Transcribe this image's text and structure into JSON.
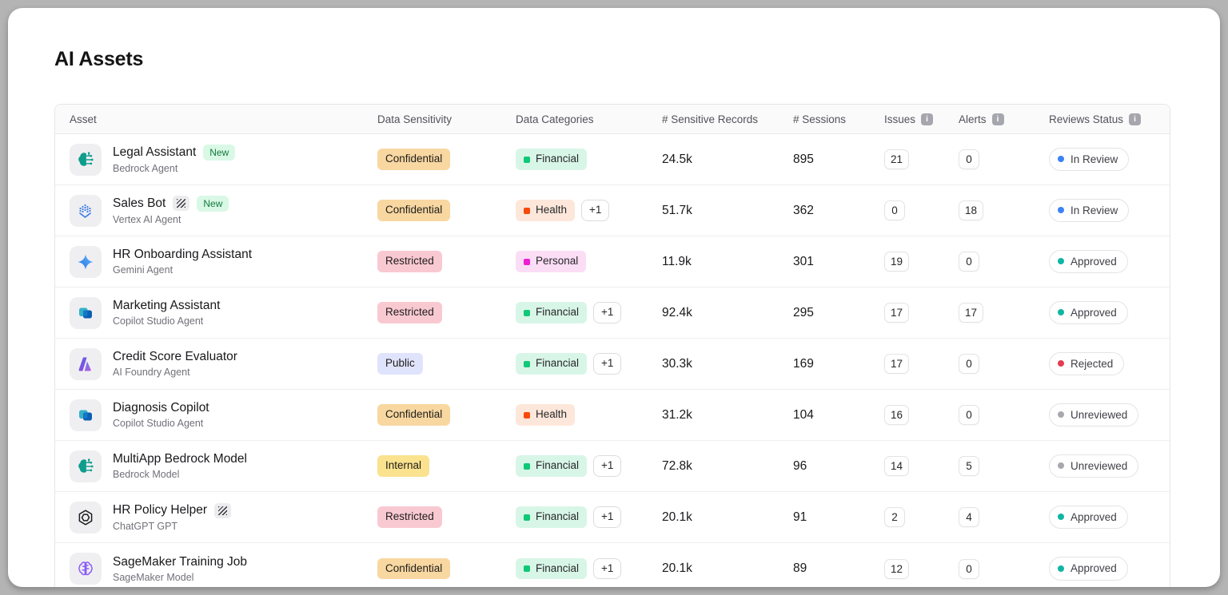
{
  "page": {
    "title": "AI Assets"
  },
  "colors": {
    "sensitivity": {
      "Confidential": {
        "bg": "#f8d7a1",
        "text": "#1f1d1a"
      },
      "Restricted": {
        "bg": "#f9c9d2",
        "text": "#1f1d1a"
      },
      "Public": {
        "bg": "#dfe3fc",
        "text": "#1f1d1a"
      },
      "Internal": {
        "bg": "#fae28e",
        "text": "#1f1d1a"
      }
    },
    "categories": {
      "Financial": {
        "bg": "#d8f6e7",
        "dot": "#10c877"
      },
      "Health": {
        "bg": "#fde7da",
        "dot": "#f64a0a"
      },
      "Personal": {
        "bg": "#fbddf6",
        "dot": "#ee1fd0"
      }
    },
    "review_status": {
      "In Review": "#3b82f6",
      "Approved": "#10b5a3",
      "Rejected": "#e23c52",
      "Unreviewed": "#a8a8b0"
    }
  },
  "table": {
    "columns": [
      {
        "label": "Asset",
        "info": false
      },
      {
        "label": "Data Sensitivity",
        "info": false
      },
      {
        "label": "Data Categories",
        "info": false
      },
      {
        "label": "# Sensitive Records",
        "info": false
      },
      {
        "label": "# Sessions",
        "info": false
      },
      {
        "label": "Issues",
        "info": true
      },
      {
        "label": "Alerts",
        "info": true
      },
      {
        "label": "Reviews Status",
        "info": true
      }
    ],
    "info_icon_glyph": "i",
    "new_badge_label": "New",
    "extra_chip_label": "+1",
    "rows": [
      {
        "name": "Legal Assistant",
        "subtitle": "Bedrock Agent",
        "icon": "bedrock",
        "is_new": true,
        "hatched": false,
        "sensitivity": "Confidential",
        "categories": [
          "Financial"
        ],
        "extra": false,
        "records": "24.5k",
        "sessions": "895",
        "issues": "21",
        "alerts": "0",
        "review": "In Review"
      },
      {
        "name": "Sales Bot",
        "subtitle": "Vertex AI Agent",
        "icon": "vertex",
        "is_new": true,
        "hatched": true,
        "sensitivity": "Confidential",
        "categories": [
          "Health"
        ],
        "extra": true,
        "records": "51.7k",
        "sessions": "362",
        "issues": "0",
        "alerts": "18",
        "review": "In Review"
      },
      {
        "name": "HR Onboarding Assistant",
        "subtitle": "Gemini Agent",
        "icon": "gemini",
        "is_new": false,
        "hatched": false,
        "sensitivity": "Restricted",
        "categories": [
          "Personal"
        ],
        "extra": false,
        "records": "11.9k",
        "sessions": "301",
        "issues": "19",
        "alerts": "0",
        "review": "Approved"
      },
      {
        "name": "Marketing Assistant",
        "subtitle": "Copilot Studio Agent",
        "icon": "copilot",
        "is_new": false,
        "hatched": false,
        "sensitivity": "Restricted",
        "categories": [
          "Financial"
        ],
        "extra": true,
        "records": "92.4k",
        "sessions": "295",
        "issues": "17",
        "alerts": "17",
        "review": "Approved"
      },
      {
        "name": "Credit Score Evaluator",
        "subtitle": "AI Foundry Agent",
        "icon": "foundry",
        "is_new": false,
        "hatched": false,
        "sensitivity": "Public",
        "categories": [
          "Financial"
        ],
        "extra": true,
        "records": "30.3k",
        "sessions": "169",
        "issues": "17",
        "alerts": "0",
        "review": "Rejected"
      },
      {
        "name": "Diagnosis Copilot",
        "subtitle": "Copilot Studio Agent",
        "icon": "copilot",
        "is_new": false,
        "hatched": false,
        "sensitivity": "Confidential",
        "categories": [
          "Health"
        ],
        "extra": false,
        "records": "31.2k",
        "sessions": "104",
        "issues": "16",
        "alerts": "0",
        "review": "Unreviewed"
      },
      {
        "name": "MultiApp Bedrock Model",
        "subtitle": "Bedrock Model",
        "icon": "bedrock",
        "is_new": false,
        "hatched": false,
        "sensitivity": "Internal",
        "categories": [
          "Financial"
        ],
        "extra": true,
        "records": "72.8k",
        "sessions": "96",
        "issues": "14",
        "alerts": "5",
        "review": "Unreviewed"
      },
      {
        "name": "HR Policy Helper",
        "subtitle": "ChatGPT GPT",
        "icon": "openai",
        "is_new": false,
        "hatched": true,
        "sensitivity": "Restricted",
        "categories": [
          "Financial"
        ],
        "extra": true,
        "records": "20.1k",
        "sessions": "91",
        "issues": "2",
        "alerts": "4",
        "review": "Approved"
      },
      {
        "name": "SageMaker Training Job",
        "subtitle": "SageMaker Model",
        "icon": "sagemaker",
        "is_new": false,
        "hatched": false,
        "sensitivity": "Confidential",
        "categories": [
          "Financial"
        ],
        "extra": true,
        "records": "20.1k",
        "sessions": "89",
        "issues": "12",
        "alerts": "0",
        "review": "Approved"
      }
    ]
  }
}
